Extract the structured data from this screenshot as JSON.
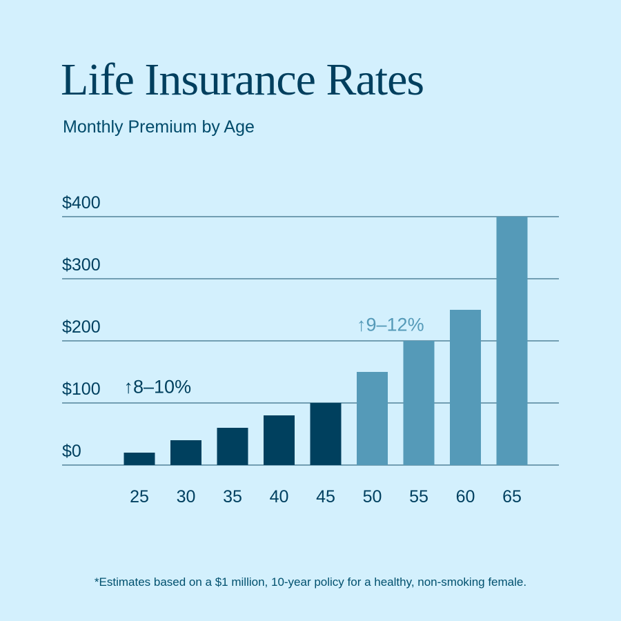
{
  "title": "Life Insurance Rates",
  "subtitle": "Monthly Premium by Age",
  "footnote": "*Estimates based on a $1 million, 10-year policy for a healthy, non-smoking female.",
  "colors": {
    "background": "#d3f0fd",
    "dark_bar": "#00405e",
    "light_bar": "#559ab8",
    "text": "#004060",
    "gridline": "#0f4d66"
  },
  "chart_data": {
    "type": "bar",
    "categories": [
      "25",
      "30",
      "35",
      "40",
      "45",
      "50",
      "55",
      "60",
      "65"
    ],
    "values": [
      20,
      40,
      60,
      80,
      100,
      150,
      200,
      250,
      400
    ],
    "ylim": [
      0,
      400
    ],
    "yticks": [
      0,
      100,
      200,
      300,
      400
    ],
    "ytick_labels": [
      "$0",
      "$100",
      "$200",
      "$300",
      "$400"
    ],
    "grid": true,
    "bar_groups": [
      "dark",
      "dark",
      "dark",
      "dark",
      "dark",
      "light",
      "light",
      "light",
      "light"
    ],
    "annotations": [
      {
        "text": "↑8–10%",
        "group": "dark",
        "at_category": "25",
        "y": 125
      },
      {
        "text": "↑9–12%",
        "group": "light",
        "at_category": "50",
        "y": 225
      }
    ]
  }
}
